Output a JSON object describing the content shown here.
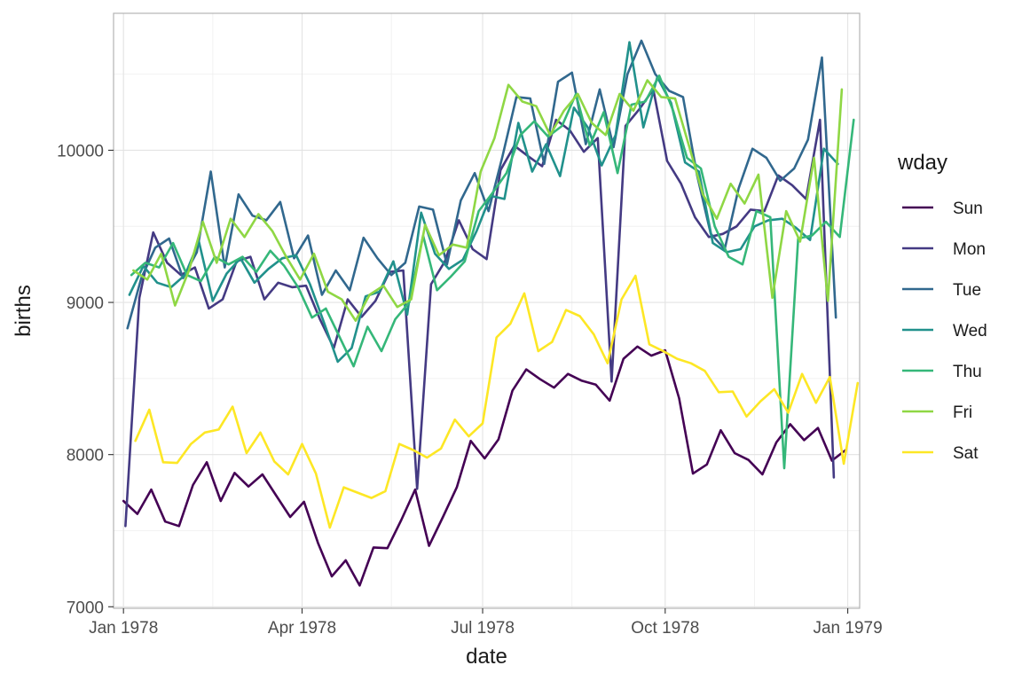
{
  "chart_data": {
    "type": "line",
    "xlabel": "date",
    "ylabel": "births",
    "xlim": [
      "1977-12-27",
      "1979-01-07"
    ],
    "ylim": [
      6990,
      10900
    ],
    "x_ticks": [
      {
        "label": "Jan 1978",
        "date": "1978-01-01"
      },
      {
        "label": "Apr 1978",
        "date": "1978-04-01"
      },
      {
        "label": "Jul 1978",
        "date": "1978-07-01"
      },
      {
        "label": "Oct 1978",
        "date": "1978-10-01"
      },
      {
        "label": "Jan 1979",
        "date": "1979-01-01"
      }
    ],
    "x_minor_dates": [
      "1978-02-15",
      "1978-05-16",
      "1978-08-15",
      "1978-11-15"
    ],
    "y_ticks": [
      7000,
      8000,
      9000,
      10000
    ],
    "y_minor": [
      7500,
      8500,
      9500,
      10500
    ],
    "grid": true,
    "legend": {
      "title": "wday",
      "position": "right"
    },
    "first_sunday": "1978-01-01",
    "series": [
      {
        "name": "Sun",
        "color": "#440154",
        "values": [
          7695,
          7610,
          7770,
          7560,
          7530,
          7800,
          7950,
          7695,
          7880,
          7790,
          7870,
          7730,
          7590,
          7690,
          7420,
          7200,
          7305,
          7140,
          7390,
          7385,
          7570,
          7770,
          7400,
          7590,
          7785,
          8090,
          7975,
          8100,
          8420,
          8560,
          8495,
          8440,
          8530,
          8485,
          8460,
          8355,
          8630,
          8710,
          8650,
          8685,
          8370,
          7875,
          7935,
          8160,
          8010,
          7965,
          7870,
          8080,
          8200,
          8095,
          8175,
          7960,
          8030
        ]
      },
      {
        "name": "Mon",
        "color": "#443a83",
        "values": [
          7530,
          9030,
          9460,
          9260,
          9180,
          9230,
          8960,
          9020,
          9270,
          9300,
          9020,
          9130,
          9100,
          9110,
          8890,
          8700,
          9020,
          8905,
          9010,
          9200,
          9210,
          7775,
          9120,
          9270,
          9540,
          9350,
          9285,
          9870,
          10030,
          9960,
          9895,
          10200,
          10130,
          9990,
          10080,
          8480,
          10160,
          10270,
          10400,
          9930,
          9780,
          9560,
          9430,
          9450,
          9500,
          9610,
          9600,
          9835,
          9770,
          9680,
          10200,
          7850
        ]
      },
      {
        "name": "Tue",
        "color": "#31688e",
        "values": [
          8830,
          9160,
          9360,
          9420,
          9160,
          9330,
          9860,
          9230,
          9710,
          9570,
          9540,
          9660,
          9290,
          9440,
          9050,
          9210,
          9080,
          9425,
          9290,
          9180,
          9260,
          9630,
          9610,
          9250,
          9670,
          9850,
          9600,
          9960,
          10350,
          10340,
          9910,
          10450,
          10510,
          10040,
          10400,
          10020,
          10500,
          10720,
          10500,
          10390,
          10350,
          9840,
          9450,
          9350,
          9750,
          10010,
          9950,
          9800,
          9880,
          10070,
          10610,
          8900
        ]
      },
      {
        "name": "Wed",
        "color": "#21918c",
        "values": [
          9050,
          9240,
          9130,
          9100,
          9180,
          9400,
          9010,
          9190,
          9290,
          9130,
          9220,
          9290,
          9310,
          9120,
          8870,
          8610,
          8700,
          9040,
          9070,
          9270,
          8920,
          9590,
          9320,
          9220,
          9280,
          9470,
          9700,
          9680,
          10180,
          9860,
          10040,
          9830,
          10280,
          10150,
          9900,
          10100,
          10710,
          10150,
          10480,
          10310,
          9920,
          9860,
          9390,
          9330,
          9350,
          9500,
          9540,
          9550,
          9490,
          9410,
          10010,
          9910
        ]
      },
      {
        "name": "Thu",
        "color": "#35b779",
        "values": [
          9180,
          9260,
          9230,
          9390,
          9180,
          9140,
          9300,
          9250,
          9300,
          9200,
          9340,
          9240,
          9100,
          8900,
          8960,
          8770,
          8580,
          8840,
          8680,
          8890,
          9000,
          9440,
          9080,
          9170,
          9270,
          9600,
          9720,
          9850,
          10100,
          10190,
          10090,
          10160,
          10370,
          10030,
          10250,
          9850,
          10300,
          10320,
          10490,
          10260,
          9950,
          9880,
          9500,
          9300,
          9250,
          9600,
          9560,
          7910,
          9420,
          9440,
          9530,
          9430,
          10200
        ]
      },
      {
        "name": "Fri",
        "color": "#8fd744",
        "values": [
          9210,
          9150,
          9320,
          8980,
          9210,
          9530,
          9260,
          9550,
          9430,
          9580,
          9470,
          9300,
          9150,
          9320,
          9070,
          9020,
          8880,
          9050,
          9110,
          8970,
          9020,
          9510,
          9310,
          9380,
          9360,
          9860,
          10080,
          10430,
          10320,
          10290,
          10100,
          10260,
          10370,
          10180,
          10100,
          10370,
          10260,
          10460,
          10350,
          10340,
          10030,
          9710,
          9550,
          9780,
          9650,
          9840,
          9030,
          9600,
          9400,
          9950,
          9010,
          10400
        ]
      },
      {
        "name": "Sat",
        "color": "#fde725",
        "values": [
          8090,
          8295,
          7950,
          7945,
          8070,
          8145,
          8165,
          8315,
          8010,
          8145,
          7955,
          7870,
          8070,
          7875,
          7520,
          7785,
          7750,
          7715,
          7760,
          8070,
          8030,
          7980,
          8040,
          8230,
          8120,
          8205,
          8770,
          8860,
          9060,
          8680,
          8740,
          8950,
          8910,
          8790,
          8600,
          9020,
          9175,
          8725,
          8680,
          8630,
          8600,
          8550,
          8410,
          8415,
          8250,
          8350,
          8430,
          8275,
          8530,
          8340,
          8510,
          7940,
          8470
        ]
      }
    ]
  }
}
